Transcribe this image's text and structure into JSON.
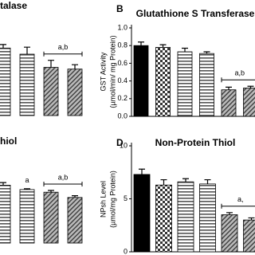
{
  "chart_data": [
    {
      "type": "bar",
      "title": "talase",
      "values": [
        77,
        70,
        55,
        53
      ],
      "errors": [
        4,
        8,
        8,
        5
      ],
      "fills": [
        "hstripe",
        "hstripe",
        "hatch",
        "hatch"
      ],
      "ylim": [
        0,
        100
      ],
      "annotations": [
        {
          "text": "a,b",
          "bars": [
            2,
            3
          ]
        }
      ]
    },
    {
      "type": "bar",
      "panel": "B",
      "title": "Glutathione S Transferase",
      "y_label": [
        "GST Activity",
        "(µmol/min/ mg Protein)"
      ],
      "values": [
        0.8,
        0.78,
        0.73,
        0.71,
        0.3,
        0.32
      ],
      "errors": [
        0.04,
        0.03,
        0.04,
        0.02,
        0.03,
        0.02
      ],
      "fills": [
        "solid",
        "checker",
        "hstripe",
        "hstripe",
        "hatch",
        "hatch"
      ],
      "ylim": [
        0,
        1.0
      ],
      "yticks": [
        {
          "value": 0,
          "label": "0.0"
        },
        {
          "value": 0.2,
          "label": "0.2"
        },
        {
          "value": 0.4,
          "label": "0.4"
        },
        {
          "value": 0.6,
          "label": "0.6"
        },
        {
          "value": 0.8,
          "label": "0.8"
        },
        {
          "value": 1.0,
          "label": "1.0"
        }
      ],
      "annotations": [
        {
          "text": "a,b",
          "bars": [
            4,
            5
          ]
        }
      ]
    },
    {
      "type": "bar",
      "title": "hiol",
      "values": [
        66,
        61,
        58,
        52
      ],
      "errors": [
        3,
        1,
        2,
        2
      ],
      "fills": [
        "hstripe",
        "hstripe",
        "hatch",
        "hatch"
      ],
      "ylim": [
        0,
        100
      ],
      "annotations": [
        {
          "text": "a",
          "bars": [
            1
          ]
        },
        {
          "text": "a,b",
          "bars": [
            2,
            3
          ]
        }
      ]
    },
    {
      "type": "bar",
      "panel": "D",
      "title": "Non-Protein Thiol",
      "y_label": [
        "NPsh Level",
        "(µmol/mg Protein)"
      ],
      "values": [
        7.3,
        6.3,
        6.6,
        6.4,
        3.5,
        3.0
      ],
      "errors": [
        0.5,
        0.5,
        0.3,
        0.4,
        0.2,
        0.2
      ],
      "fills": [
        "solid",
        "checker",
        "hstripe",
        "hstripe",
        "hatch",
        "hatch"
      ],
      "ylim": [
        0,
        10
      ],
      "yticks": [
        0,
        5,
        10
      ],
      "annotations": [
        {
          "text": "a,",
          "bars": [
            4,
            5
          ]
        }
      ]
    }
  ]
}
